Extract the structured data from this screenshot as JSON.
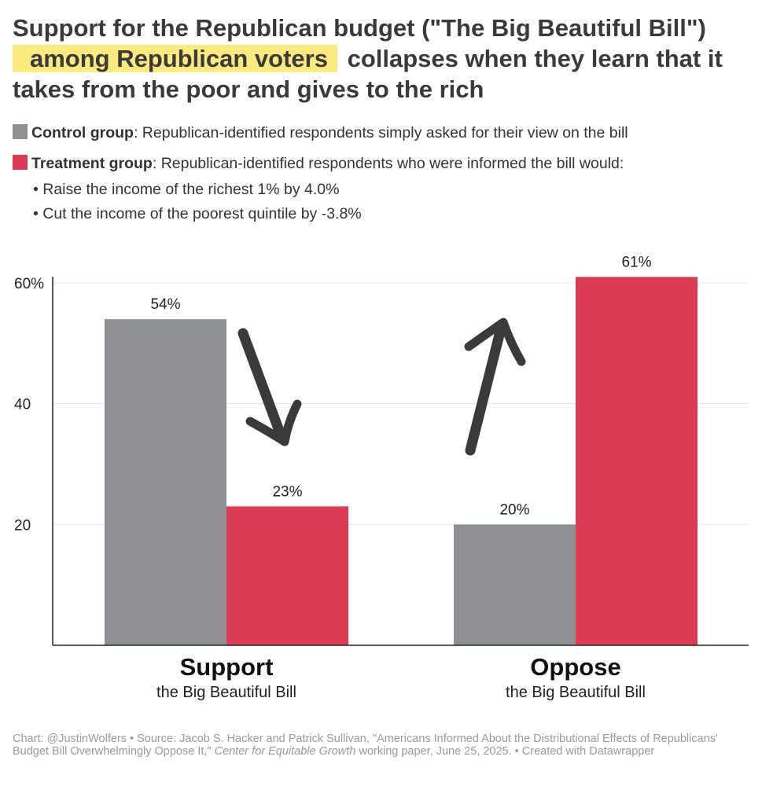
{
  "title": {
    "part1": "Support for the Republican budget (\"The Big Beautiful Bill\")",
    "highlight": "among Republican voters",
    "part2": "collapses when they learn that it takes from the poor and gives to the rich"
  },
  "legend": {
    "control_label": "Control group",
    "control_desc": ": Republican-identified respondents simply asked for their view on the bill",
    "treatment_label": "Treatment group",
    "treatment_desc": ": Republican-identified respondents who were informed the bill would:",
    "bullets": [
      "• Raise the income of the richest 1% by 4.0%",
      "• Cut the income of the poorest quintile by -3.8%"
    ]
  },
  "colors": {
    "control": "#8f9094",
    "treatment": "#dc3a55",
    "highlight": "#fbeb7e",
    "arrow": "#3a3a3a"
  },
  "chart_data": {
    "type": "bar",
    "categories": [
      "Support",
      "Oppose"
    ],
    "category_subtitles": [
      "the Big Beautiful Bill",
      "the Big Beautiful Bill"
    ],
    "series": [
      {
        "name": "Control group",
        "values": [
          54,
          20
        ],
        "labels": [
          "54%",
          "20%"
        ]
      },
      {
        "name": "Treatment group",
        "values": [
          23,
          61
        ],
        "labels": [
          "23%",
          "61%"
        ]
      }
    ],
    "yticks": [
      20,
      40,
      60
    ],
    "ytick_labels": [
      "20",
      "40",
      "60%"
    ],
    "ylim": [
      0,
      60
    ],
    "grid": true,
    "legend": "top"
  },
  "footer": {
    "text1": "Chart: @JustinWolfers • Source: Jacob S. Hacker and Patrick Sullivan, \"Americans Informed About the Distributional Effects of Republicans' Budget Bill Overwhelmingly Oppose It,\" ",
    "italic": "Center for Equitable Growth",
    "text2": " working paper, June 25, 2025. • Created with Datawrapper"
  }
}
